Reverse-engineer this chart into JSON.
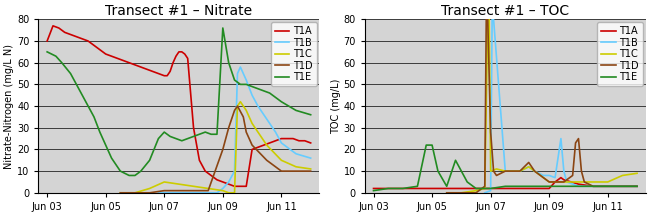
{
  "title_nitrate": "Transect #1 – Nitrate",
  "title_toc": "Transect #1 – TOC",
  "ylabel_nitrate": "Nitrate-Nitrogen (mg/L N)",
  "ylabel_toc": "TOC (mg/L)",
  "ylim_nitrate": [
    0,
    80
  ],
  "ylim_toc": [
    0,
    80
  ],
  "background_color": "#d4d4d4",
  "colors": {
    "T1A": "#cc0000",
    "T1B": "#66ccff",
    "T1C": "#cccc00",
    "T1D": "#8B4513",
    "T1E": "#228B22"
  },
  "nitrate": {
    "T1A": {
      "x": [
        0,
        0.2,
        0.4,
        0.6,
        0.8,
        1.0,
        1.2,
        1.4,
        1.6,
        1.8,
        2.0,
        2.2,
        2.4,
        2.6,
        2.8,
        3.0,
        3.2,
        3.4,
        3.6,
        3.8,
        4.0,
        4.1,
        4.2,
        4.3,
        4.4,
        4.5,
        4.6,
        4.7,
        4.8,
        5.0,
        5.2,
        5.4,
        5.6,
        5.8,
        6.0,
        6.2,
        6.4,
        6.6,
        6.8,
        7.0,
        7.2,
        7.4,
        7.6,
        7.8,
        8.0,
        8.2,
        8.4,
        8.6,
        8.8,
        9.0
      ],
      "y": [
        70,
        77,
        76,
        74,
        73,
        72,
        71,
        70,
        68,
        66,
        64,
        63,
        62,
        61,
        60,
        59,
        58,
        57,
        56,
        55,
        54,
        54,
        56,
        60,
        63,
        65,
        65,
        64,
        62,
        30,
        15,
        10,
        8,
        6,
        5,
        4,
        3,
        3,
        3,
        20,
        21,
        22,
        23,
        24,
        25,
        25,
        25,
        24,
        24,
        23
      ]
    },
    "T1B": {
      "x": [
        3.8,
        4.0,
        4.2,
        4.4,
        4.6,
        4.8,
        5.0,
        5.2,
        5.4,
        5.6,
        5.8,
        6.0,
        6.2,
        6.4,
        6.5,
        6.6,
        6.8,
        7.0,
        7.2,
        7.4,
        7.6,
        7.8,
        8.0,
        8.5,
        9.0
      ],
      "y": [
        0,
        0,
        0,
        0,
        0,
        0,
        0,
        0,
        0,
        0,
        0,
        2,
        5,
        10,
        55,
        58,
        52,
        45,
        40,
        36,
        32,
        28,
        23,
        18,
        16
      ]
    },
    "T1C": {
      "x": [
        2.5,
        3.0,
        3.5,
        4.0,
        4.5,
        5.0,
        5.5,
        6.0,
        6.2,
        6.4,
        6.5,
        6.6,
        6.8,
        7.0,
        7.5,
        8.0,
        8.5,
        9.0
      ],
      "y": [
        0,
        0,
        2,
        5,
        4,
        3,
        2,
        1,
        0,
        0,
        40,
        42,
        38,
        32,
        22,
        15,
        12,
        11
      ]
    },
    "T1D": {
      "x": [
        2.5,
        3.0,
        3.5,
        4.0,
        4.5,
        5.0,
        5.5,
        6.0,
        6.2,
        6.4,
        6.5,
        6.7,
        6.8,
        7.0,
        7.5,
        8.0,
        8.5,
        9.0
      ],
      "y": [
        0,
        0,
        0,
        1,
        1,
        1,
        1,
        20,
        30,
        38,
        40,
        35,
        28,
        22,
        15,
        10,
        10,
        10
      ]
    },
    "T1E": {
      "x": [
        0,
        0.3,
        0.5,
        0.8,
        1.0,
        1.2,
        1.4,
        1.6,
        1.8,
        2.0,
        2.2,
        2.5,
        2.8,
        3.0,
        3.2,
        3.5,
        3.8,
        4.0,
        4.2,
        4.4,
        4.6,
        4.8,
        5.0,
        5.2,
        5.4,
        5.6,
        5.8,
        6.0,
        6.2,
        6.4,
        6.6,
        6.8,
        7.0,
        7.2,
        7.4,
        7.6,
        7.8,
        8.0,
        8.5,
        9.0
      ],
      "y": [
        65,
        63,
        60,
        55,
        50,
        45,
        40,
        35,
        28,
        22,
        16,
        10,
        8,
        8,
        10,
        15,
        25,
        28,
        26,
        25,
        24,
        25,
        26,
        27,
        28,
        27,
        27,
        76,
        60,
        52,
        50,
        50,
        49,
        48,
        47,
        46,
        44,
        42,
        38,
        36
      ]
    }
  },
  "toc": {
    "T1A": {
      "x": [
        0,
        0.5,
        1.0,
        1.5,
        2.0,
        2.5,
        3.0,
        3.5,
        4.0,
        4.5,
        5.0,
        5.5,
        6.0,
        6.2,
        6.4,
        6.5,
        7.0,
        7.5,
        8.0,
        8.5,
        9.0
      ],
      "y": [
        2,
        2,
        2,
        2,
        2,
        2,
        2,
        2,
        2,
        2,
        2,
        2,
        2,
        5,
        7,
        6,
        4,
        3,
        3,
        3,
        3
      ]
    },
    "T1B": {
      "x": [
        3.8,
        4.0,
        4.05,
        4.1,
        4.5,
        5.0,
        5.3,
        5.5,
        5.8,
        6.0,
        6.2,
        6.4,
        6.5,
        6.6,
        7.0,
        7.5,
        8.0,
        8.5,
        9.0
      ],
      "y": [
        0,
        1,
        80,
        80,
        10,
        10,
        12,
        10,
        8,
        8,
        7,
        25,
        10,
        5,
        3,
        3,
        3,
        3,
        3
      ]
    },
    "T1C": {
      "x": [
        2.5,
        3.0,
        3.5,
        3.8,
        3.9,
        3.95,
        4.0,
        4.2,
        4.5,
        5.0,
        5.3,
        5.5,
        6.0,
        6.5,
        7.0,
        7.5,
        8.0,
        8.5,
        9.0
      ],
      "y": [
        0,
        0,
        1,
        2,
        80,
        80,
        10,
        11,
        10,
        10,
        12,
        10,
        5,
        5,
        5,
        5,
        5,
        8,
        9
      ]
    },
    "T1D": {
      "x": [
        2.5,
        3.5,
        3.8,
        3.85,
        3.9,
        4.0,
        4.1,
        4.2,
        4.5,
        5.0,
        5.3,
        5.5,
        6.0,
        6.5,
        6.8,
        6.9,
        7.0,
        7.1,
        7.2,
        7.5,
        8.0,
        8.5,
        9.0
      ],
      "y": [
        0,
        0,
        3,
        80,
        80,
        28,
        10,
        8,
        10,
        10,
        14,
        10,
        5,
        5,
        8,
        23,
        25,
        10,
        5,
        3,
        3,
        3,
        3
      ]
    },
    "T1E": {
      "x": [
        0,
        0.5,
        1.0,
        1.5,
        1.8,
        2.0,
        2.2,
        2.5,
        2.8,
        3.0,
        3.2,
        3.5,
        3.8,
        4.0,
        4.5,
        5.0,
        5.5,
        6.0,
        6.5,
        7.0,
        7.5,
        8.0,
        8.5,
        9.0
      ],
      "y": [
        1,
        2,
        2,
        3,
        22,
        22,
        10,
        3,
        15,
        10,
        5,
        2,
        2,
        2,
        3,
        3,
        3,
        3,
        3,
        3,
        3,
        3,
        3,
        3
      ]
    }
  },
  "xtick_positions": [
    0,
    2,
    4,
    6,
    8
  ],
  "xtick_labels": [
    "Jun 03",
    "Jun 05",
    "Jun 07",
    "Jun 09",
    "Jun 11"
  ],
  "yticks_nitrate": [
    0,
    10,
    20,
    30,
    40,
    50,
    60,
    70,
    80
  ],
  "yticks_toc": [
    0,
    10,
    20,
    30,
    40,
    50,
    60,
    70,
    80
  ],
  "title_fontsize": 10,
  "label_fontsize": 7,
  "tick_fontsize": 7,
  "legend_fontsize": 7,
  "linewidth": 1.2
}
